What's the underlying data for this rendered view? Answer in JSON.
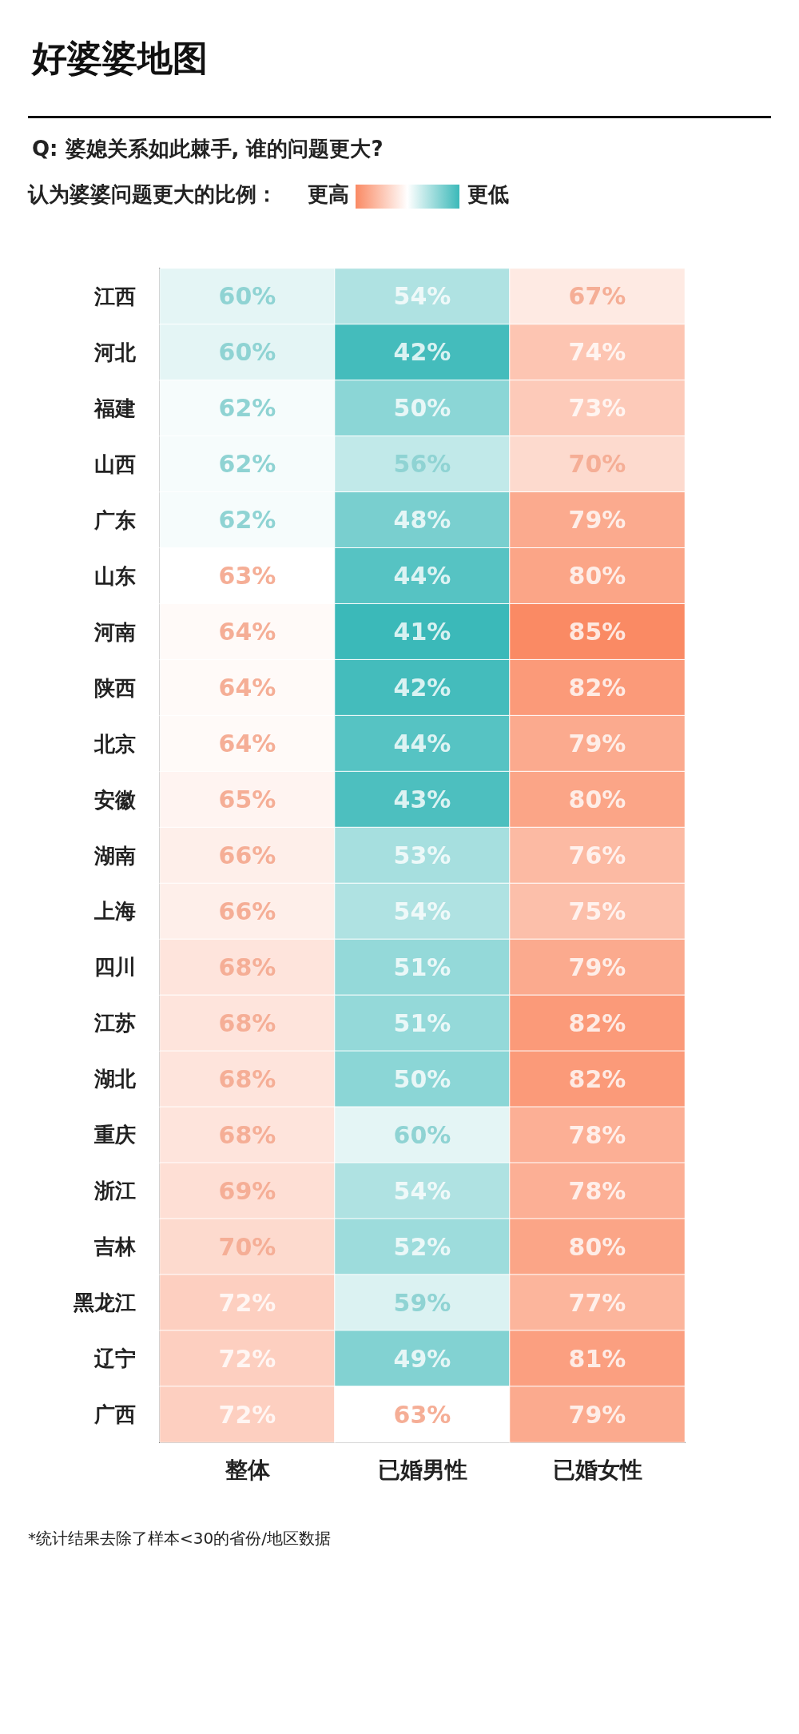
{
  "chart_data": {
    "type": "heatmap",
    "title": "好婆婆地图",
    "subtitle": "Q: 婆媳关系如此棘手, 谁的问题更大?",
    "clabel": "认为婆婆问题更大的比例：",
    "categories": [
      "整体",
      "已婚男性",
      "已婚女性"
    ],
    "y_categories": [
      "江西",
      "河北",
      "福建",
      "山西",
      "广东",
      "山东",
      "河南",
      "陕西",
      "北京",
      "安徽",
      "湖南",
      "上海",
      "四川",
      "江苏",
      "湖北",
      "重庆",
      "浙江",
      "吉林",
      "黑龙江",
      "辽宁",
      "广西"
    ],
    "cells": [
      [
        60,
        54,
        67
      ],
      [
        60,
        42,
        74
      ],
      [
        62,
        50,
        73
      ],
      [
        62,
        56,
        70
      ],
      [
        62,
        48,
        79
      ],
      [
        63,
        44,
        80
      ],
      [
        64,
        41,
        85
      ],
      [
        64,
        42,
        82
      ],
      [
        64,
        44,
        79
      ],
      [
        65,
        43,
        80
      ],
      [
        66,
        53,
        76
      ],
      [
        66,
        54,
        75
      ],
      [
        68,
        51,
        79
      ],
      [
        68,
        51,
        82
      ],
      [
        68,
        50,
        82
      ],
      [
        68,
        60,
        78
      ],
      [
        69,
        54,
        78
      ],
      [
        70,
        52,
        80
      ],
      [
        72,
        59,
        77
      ],
      [
        72,
        49,
        81
      ],
      [
        72,
        63,
        79
      ]
    ],
    "cell_labels": [
      [
        "60%",
        "54%",
        "67%"
      ],
      [
        "60%",
        "42%",
        "74%"
      ],
      [
        "62%",
        "50%",
        "73%"
      ],
      [
        "62%",
        "56%",
        "70%"
      ],
      [
        "62%",
        "48%",
        "79%"
      ],
      [
        "63%",
        "44%",
        "80%"
      ],
      [
        "64%",
        "41%",
        "85%"
      ],
      [
        "64%",
        "42%",
        "82%"
      ],
      [
        "64%",
        "44%",
        "79%"
      ],
      [
        "65%",
        "43%",
        "80%"
      ],
      [
        "66%",
        "53%",
        "76%"
      ],
      [
        "66%",
        "54%",
        "75%"
      ],
      [
        "68%",
        "51%",
        "79%"
      ],
      [
        "68%",
        "51%",
        "82%"
      ],
      [
        "68%",
        "50%",
        "82%"
      ],
      [
        "68%",
        "60%",
        "78%"
      ],
      [
        "69%",
        "54%",
        "78%"
      ],
      [
        "70%",
        "52%",
        "80%"
      ],
      [
        "72%",
        "59%",
        "77%"
      ],
      [
        "72%",
        "49%",
        "81%"
      ],
      [
        "72%",
        "63%",
        "79%"
      ]
    ],
    "annotations": [
      "更高",
      "更低",
      "*统计结果去除了样本<30的省份/地区数据"
    ]
  }
}
